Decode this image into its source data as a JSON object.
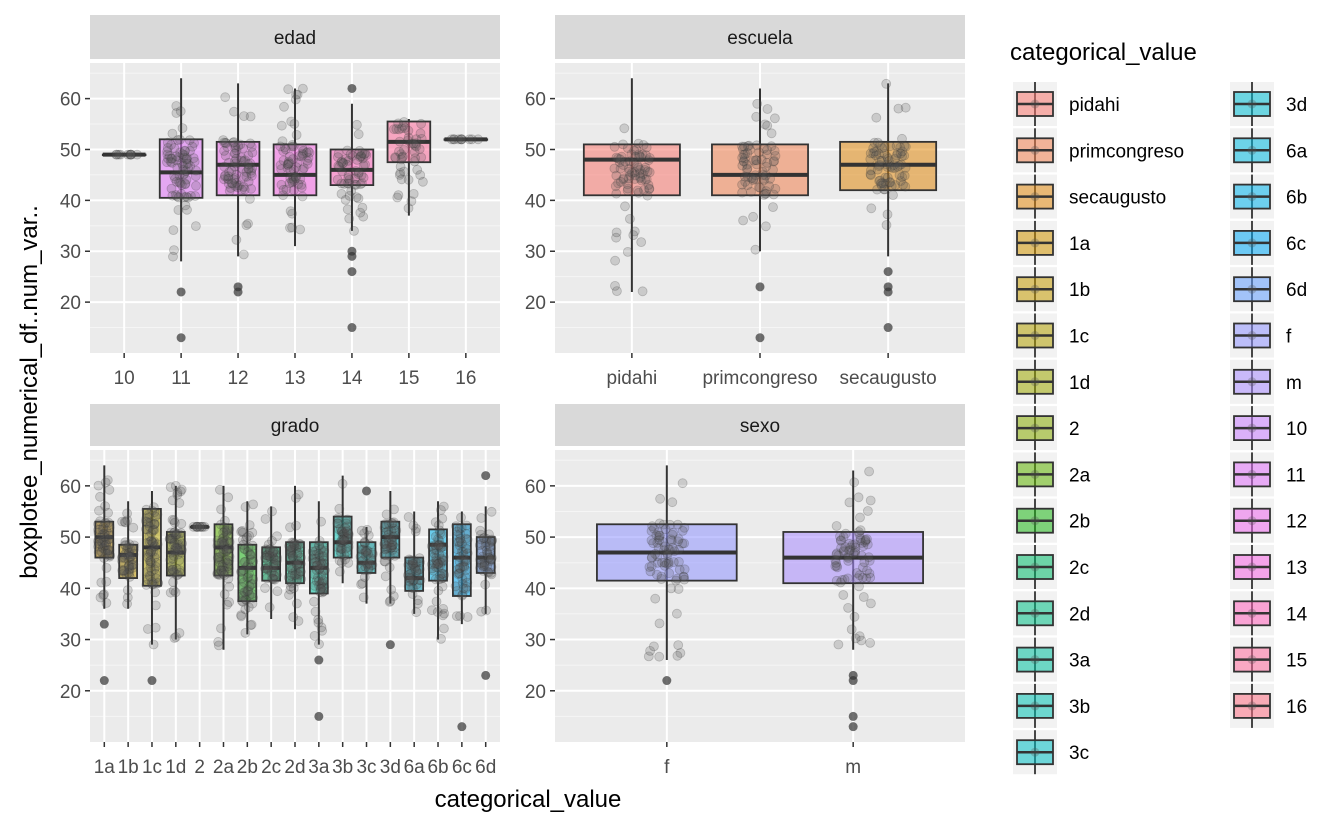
{
  "figure": {
    "y_title": "boxplotee_numerical_df..num_var..",
    "x_title": "categorical_value",
    "legend_title": "categorical_value"
  },
  "palette": {
    "pidahi": "#F8766D",
    "primcongreso": "#F07F4E",
    "secaugusto": "#E0880E",
    "1a": "#D09300",
    "1b": "#C49A00",
    "1c": "#B2A000",
    "1d": "#9CA700",
    "2": "#86AC00",
    "2a": "#5EB300",
    "2b": "#1FB818",
    "2c": "#00BB6A",
    "2d": "#00BE85",
    "3a": "#00C09E",
    "3b": "#00C1B2",
    "3c": "#00BFC4",
    "3d": "#00BDD4",
    "6a": "#00BAE0",
    "6b": "#00B2EB",
    "6c": "#00A8F5",
    "6d": "#619CFF",
    "f": "#8F93FF",
    "m": "#A88BFF",
    "10": "#C77CFF",
    "11": "#DF70F8",
    "12": "#ED68ED",
    "13": "#F564E3",
    "14": "#FF62BC",
    "15": "#FF6C9C",
    "16": "#FD6F83"
  },
  "legend": {
    "items": [
      "pidahi",
      "primcongreso",
      "secaugusto",
      "1a",
      "1b",
      "1c",
      "1d",
      "2",
      "2a",
      "2b",
      "2c",
      "2d",
      "3a",
      "3b",
      "3c",
      "3d",
      "6a",
      "6b",
      "6c",
      "6d",
      "f",
      "m",
      "10",
      "11",
      "12",
      "13",
      "14",
      "15",
      "16"
    ]
  },
  "chart_data": [
    {
      "type": "box",
      "panel": "edad",
      "title": "edad",
      "ylim": [
        10,
        67
      ],
      "yticks": [
        20,
        30,
        40,
        50,
        60
      ],
      "categories": [
        "10",
        "11",
        "12",
        "13",
        "14",
        "15",
        "16"
      ],
      "boxes": [
        {
          "cat": "10",
          "q1": 49,
          "median": 49,
          "q3": 49,
          "lo": 49,
          "hi": 49,
          "outliers": []
        },
        {
          "cat": "11",
          "q1": 40.5,
          "median": 45.5,
          "q3": 52,
          "lo": 28,
          "hi": 64,
          "outliers": [
            22,
            13
          ]
        },
        {
          "cat": "12",
          "q1": 41,
          "median": 47,
          "q3": 51.5,
          "lo": 29,
          "hi": 63,
          "outliers": [
            23,
            22
          ]
        },
        {
          "cat": "13",
          "q1": 41,
          "median": 45,
          "q3": 51,
          "lo": 31,
          "hi": 62,
          "outliers": []
        },
        {
          "cat": "14",
          "q1": 43,
          "median": 46,
          "q3": 50,
          "lo": 34,
          "hi": 59,
          "outliers": [
            62,
            30,
            29,
            26,
            15
          ]
        },
        {
          "cat": "15",
          "q1": 47.5,
          "median": 51.5,
          "q3": 55.5,
          "lo": 37,
          "hi": 56,
          "outliers": []
        },
        {
          "cat": "16",
          "q1": 52,
          "median": 52,
          "q3": 52,
          "lo": 52,
          "hi": 52,
          "outliers": []
        }
      ]
    },
    {
      "type": "box",
      "panel": "escuela",
      "title": "escuela",
      "ylim": [
        10,
        67
      ],
      "yticks": [
        20,
        30,
        40,
        50,
        60
      ],
      "categories": [
        "pidahi",
        "primcongreso",
        "secaugusto"
      ],
      "boxes": [
        {
          "cat": "pidahi",
          "q1": 41,
          "median": 48,
          "q3": 51,
          "lo": 22,
          "hi": 64,
          "outliers": []
        },
        {
          "cat": "primcongreso",
          "q1": 41,
          "median": 45,
          "q3": 51,
          "lo": 30,
          "hi": 62,
          "outliers": [
            23,
            13
          ]
        },
        {
          "cat": "secaugusto",
          "q1": 42,
          "median": 47,
          "q3": 51.5,
          "lo": 29,
          "hi": 63,
          "outliers": [
            26,
            23,
            22,
            15
          ]
        }
      ]
    },
    {
      "type": "box",
      "panel": "grado",
      "title": "grado",
      "ylim": [
        10,
        67
      ],
      "yticks": [
        20,
        30,
        40,
        50,
        60
      ],
      "categories": [
        "1a",
        "1b",
        "1c",
        "1d",
        "2",
        "2a",
        "2b",
        "2c",
        "2d",
        "3a",
        "3b",
        "3c",
        "3d",
        "6a",
        "6b",
        "6c",
        "6d"
      ],
      "boxes": [
        {
          "cat": "1a",
          "q1": 46,
          "median": 50,
          "q3": 53,
          "lo": 36,
          "hi": 64,
          "outliers": [
            33,
            22
          ]
        },
        {
          "cat": "1b",
          "q1": 42,
          "median": 46.5,
          "q3": 48.5,
          "lo": 36,
          "hi": 57,
          "outliers": []
        },
        {
          "cat": "1c",
          "q1": 40.5,
          "median": 48,
          "q3": 55.5,
          "lo": 29,
          "hi": 59,
          "outliers": [
            22
          ]
        },
        {
          "cat": "1d",
          "q1": 42.5,
          "median": 47,
          "q3": 51,
          "lo": 30,
          "hi": 60,
          "outliers": []
        },
        {
          "cat": "2",
          "q1": 52,
          "median": 52,
          "q3": 52,
          "lo": 52,
          "hi": 52,
          "outliers": []
        },
        {
          "cat": "2a",
          "q1": 42.5,
          "median": 48,
          "q3": 52.5,
          "lo": 28,
          "hi": 60,
          "outliers": []
        },
        {
          "cat": "2b",
          "q1": 37.5,
          "median": 44,
          "q3": 48.5,
          "lo": 31,
          "hi": 57,
          "outliers": []
        },
        {
          "cat": "2c",
          "q1": 41.5,
          "median": 44,
          "q3": 48,
          "lo": 34,
          "hi": 56,
          "outliers": []
        },
        {
          "cat": "2d",
          "q1": 41,
          "median": 45,
          "q3": 49,
          "lo": 32,
          "hi": 60,
          "outliers": []
        },
        {
          "cat": "3a",
          "q1": 39,
          "median": 44,
          "q3": 49,
          "lo": 29,
          "hi": 57,
          "outliers": [
            26,
            15
          ]
        },
        {
          "cat": "3b",
          "q1": 46,
          "median": 49,
          "q3": 54,
          "lo": 41,
          "hi": 62,
          "outliers": []
        },
        {
          "cat": "3c",
          "q1": 43,
          "median": 45,
          "q3": 49,
          "lo": 37,
          "hi": 52,
          "outliers": [
            59
          ]
        },
        {
          "cat": "3d",
          "q1": 46,
          "median": 50,
          "q3": 53,
          "lo": 37,
          "hi": 59,
          "outliers": [
            29
          ]
        },
        {
          "cat": "6a",
          "q1": 39.5,
          "median": 42,
          "q3": 46,
          "lo": 35,
          "hi": 55,
          "outliers": []
        },
        {
          "cat": "6b",
          "q1": 41.5,
          "median": 48.5,
          "q3": 51.5,
          "lo": 30,
          "hi": 57,
          "outliers": []
        },
        {
          "cat": "6c",
          "q1": 38.5,
          "median": 46,
          "q3": 52.5,
          "lo": 33,
          "hi": 55,
          "outliers": [
            13
          ]
        },
        {
          "cat": "6d",
          "q1": 43,
          "median": 46,
          "q3": 50,
          "lo": 35,
          "hi": 56,
          "outliers": [
            62,
            23
          ]
        }
      ]
    },
    {
      "type": "box",
      "panel": "sexo",
      "title": "sexo",
      "ylim": [
        10,
        67
      ],
      "yticks": [
        20,
        30,
        40,
        50,
        60
      ],
      "categories": [
        "f",
        "m"
      ],
      "boxes": [
        {
          "cat": "f",
          "q1": 41.5,
          "median": 47,
          "q3": 52.5,
          "lo": 26,
          "hi": 64,
          "outliers": [
            22
          ]
        },
        {
          "cat": "m",
          "q1": 41,
          "median": 46,
          "q3": 51,
          "lo": 28,
          "hi": 63,
          "outliers": [
            23,
            22,
            15,
            13
          ]
        }
      ]
    }
  ]
}
